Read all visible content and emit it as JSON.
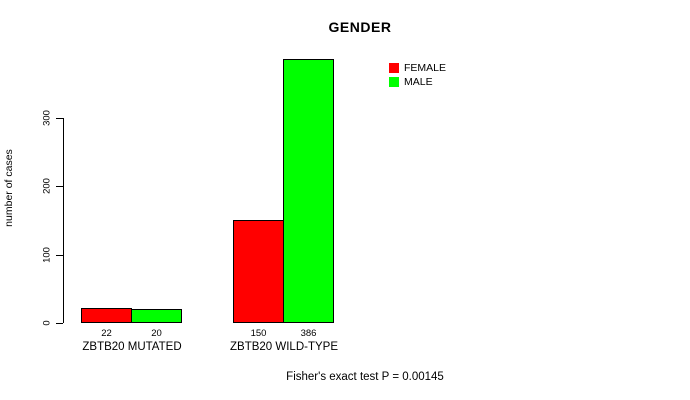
{
  "chart_data": {
    "type": "bar",
    "title": "GENDER",
    "xlabel": "",
    "ylabel": "number of cases",
    "categories": [
      "ZBTB20 MUTATED",
      "ZBTB20 WILD-TYPE"
    ],
    "series": [
      {
        "name": "FEMALE",
        "color": "#ff0000",
        "values": [
          22,
          150
        ]
      },
      {
        "name": "MALE",
        "color": "#00ff00",
        "values": [
          20,
          386
        ]
      }
    ],
    "yticks": [
      0,
      100,
      200,
      300
    ],
    "ylim": [
      0,
      386
    ],
    "grid": false,
    "legend_position": "top-right",
    "annotation": "Fisher's exact test P = 0.00145"
  },
  "colors": {
    "female": "#ff0000",
    "male": "#00ff00",
    "axis": "#000000",
    "background": "#ffffff"
  }
}
